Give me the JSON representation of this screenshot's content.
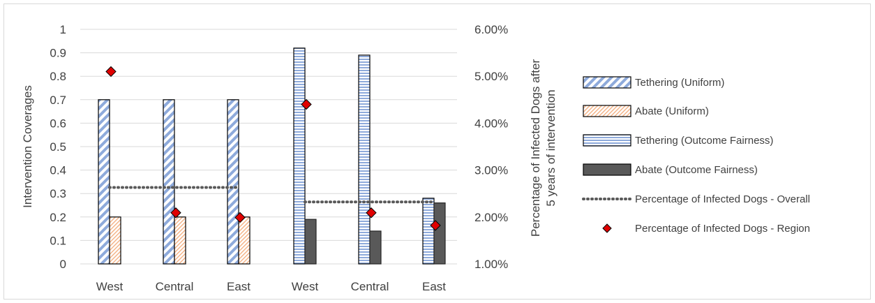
{
  "chart_data": {
    "type": "bar",
    "categories": [
      "West",
      "Central",
      "East",
      "West",
      "Central",
      "East"
    ],
    "y_left": {
      "label": "Intervention Coverages",
      "ticks": [
        "0",
        "0.1",
        "0.2",
        "0.3",
        "0.4",
        "0.5",
        "0.6",
        "0.7",
        "0.8",
        "0.9",
        "1"
      ],
      "ylim": [
        0,
        1
      ]
    },
    "y_right": {
      "label_line1": "Percentage of Infected Dogs after",
      "label_line2": "5 years of intervention",
      "ticks": [
        "1.00%",
        "2.00%",
        "3.00%",
        "4.00%",
        "5.00%",
        "6.00%"
      ],
      "ylim": [
        1,
        6
      ]
    },
    "series": [
      {
        "name": "Tethering (Uniform)",
        "axis": "left",
        "style": "diag-blue",
        "values": [
          0.7,
          0.7,
          0.7,
          null,
          null,
          null
        ]
      },
      {
        "name": "Abate (Uniform)",
        "axis": "left",
        "style": "diag-peach",
        "values": [
          0.2,
          0.2,
          0.2,
          null,
          null,
          null
        ]
      },
      {
        "name": "Tethering (Outcome Fairness)",
        "axis": "left",
        "style": "horiz-blue",
        "values": [
          null,
          null,
          null,
          0.92,
          0.89,
          0.28
        ]
      },
      {
        "name": "Abate (Outcome Fairness)",
        "axis": "left",
        "style": "solid-dark",
        "values": [
          null,
          null,
          null,
          0.19,
          0.14,
          0.26
        ]
      },
      {
        "name": "Percentage of Infected Dogs - Overall",
        "axis": "right",
        "style": "dotted-line",
        "segments": [
          {
            "from": 0,
            "to": 2,
            "value": 2.63
          },
          {
            "from": 3,
            "to": 5,
            "value": 2.32
          }
        ]
      },
      {
        "name": "Percentage of Infected Dogs - Region",
        "axis": "right",
        "style": "red-diamond",
        "values": [
          5.1,
          2.09,
          1.99,
          4.4,
          2.09,
          1.82
        ]
      }
    ],
    "grid": true,
    "legend_position": "right"
  },
  "colors": {
    "tethering_blue": "#8eaadb",
    "abate_peach": "#f4b183",
    "abate_dark": "#595959",
    "overall_dots": "#595959",
    "region_red": "#e00000",
    "grid": "#d9d9d9",
    "text": "#404040"
  }
}
